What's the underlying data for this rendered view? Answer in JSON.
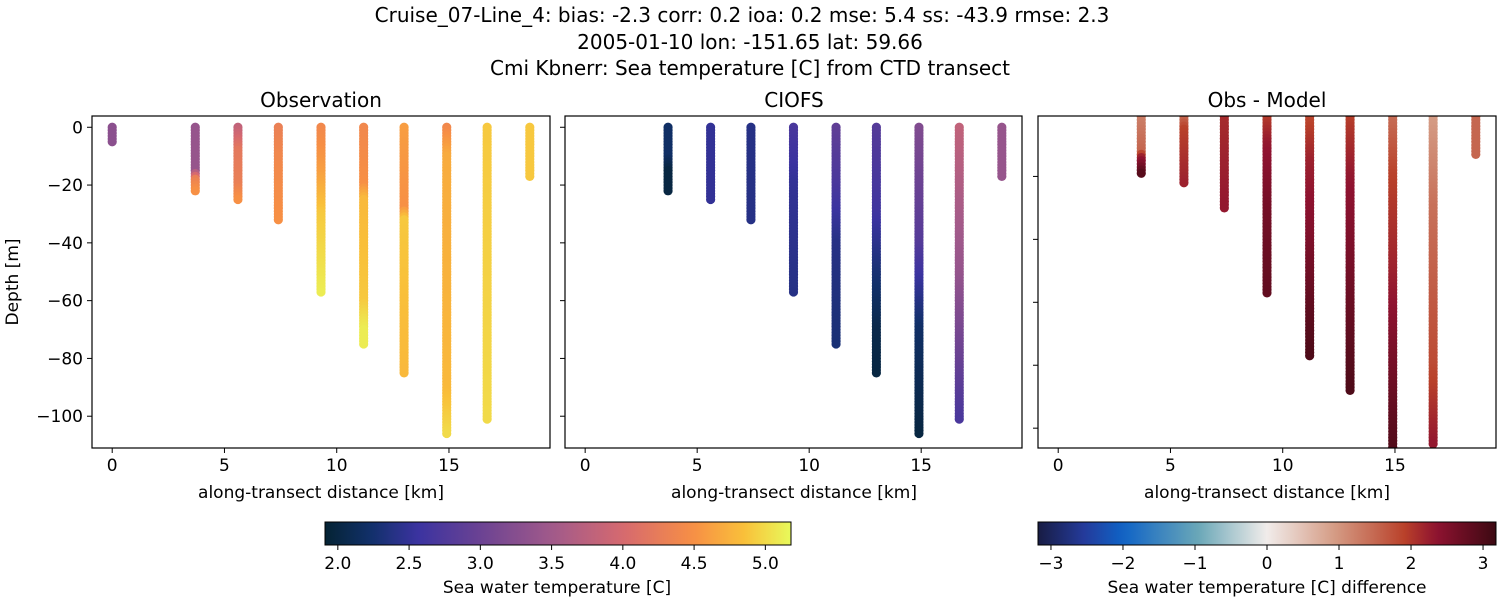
{
  "figure": {
    "title_lines": [
      "Cruise_07-Line_4: bias: -2.3  corr: 0.2  ioa: 0.2  mse: 5.4  ss: -43.9  rmse: 2.3",
      "2005-01-10 lon: -151.65 lat: 59.66",
      "Cmi Kbnerr: Sea temperature [C] from CTD transect"
    ]
  },
  "chart_data": [
    {
      "type": "scatter",
      "title": "Observation",
      "xlabel": "along-transect distance [km]",
      "ylabel": "Depth [m]",
      "xlim": [
        -0.9,
        19.5
      ],
      "ylim": [
        -111,
        3.9
      ],
      "xticks": [
        0,
        5,
        10,
        15
      ],
      "yticks": [
        0,
        -20,
        -40,
        -60,
        -80,
        -100
      ],
      "show_ytick_labels": true,
      "colormap": "thermal",
      "clim": [
        1.91,
        5.18
      ],
      "casts": [
        {
          "x": 0.0,
          "profile": [
            [
              0,
              3.3
            ],
            [
              5,
              3.3
            ]
          ]
        },
        {
          "x": 3.7,
          "profile": [
            [
              0,
              3.4
            ],
            [
              15,
              3.4
            ],
            [
              18,
              4.3
            ],
            [
              22,
              4.5
            ]
          ]
        },
        {
          "x": 5.6,
          "profile": [
            [
              0,
              3.8
            ],
            [
              8,
              4.2
            ],
            [
              20,
              4.3
            ],
            [
              25,
              4.5
            ]
          ]
        },
        {
          "x": 7.4,
          "profile": [
            [
              0,
              4.3
            ],
            [
              10,
              4.4
            ],
            [
              32,
              4.5
            ]
          ]
        },
        {
          "x": 9.3,
          "profile": [
            [
              0,
              4.4
            ],
            [
              15,
              4.6
            ],
            [
              30,
              4.9
            ],
            [
              57,
              5.1
            ]
          ]
        },
        {
          "x": 11.2,
          "profile": [
            [
              0,
              4.4
            ],
            [
              20,
              4.5
            ],
            [
              25,
              4.8
            ],
            [
              60,
              4.9
            ],
            [
              70,
              5.1
            ],
            [
              75,
              5.1
            ]
          ]
        },
        {
          "x": 13.0,
          "profile": [
            [
              0,
              4.6
            ],
            [
              28,
              4.5
            ],
            [
              32,
              4.9
            ],
            [
              85,
              4.8
            ]
          ]
        },
        {
          "x": 14.9,
          "profile": [
            [
              0,
              4.4
            ],
            [
              10,
              4.7
            ],
            [
              90,
              4.8
            ],
            [
              106,
              5.0
            ]
          ]
        },
        {
          "x": 16.7,
          "profile": [
            [
              0,
              4.9
            ],
            [
              101,
              5.0
            ]
          ]
        },
        {
          "x": 18.6,
          "profile": [
            [
              0,
              4.9
            ],
            [
              17,
              4.9
            ]
          ]
        }
      ]
    },
    {
      "type": "scatter",
      "title": "CIOFS",
      "xlabel": "along-transect distance [km]",
      "xlim": [
        -0.9,
        19.5
      ],
      "ylim": [
        -111,
        3.9
      ],
      "xticks": [
        0,
        5,
        10,
        15
      ],
      "yticks": [
        0,
        -20,
        -40,
        -60,
        -80,
        -100
      ],
      "show_ytick_labels": false,
      "colormap": "thermal",
      "clim": [
        1.91,
        5.18
      ],
      "casts": [
        {
          "x": 3.7,
          "profile": [
            [
              0,
              2.2
            ],
            [
              10,
              2.2
            ],
            [
              15,
              2.0
            ],
            [
              22,
              2.0
            ]
          ]
        },
        {
          "x": 5.6,
          "profile": [
            [
              0,
              2.5
            ],
            [
              25,
              2.5
            ]
          ]
        },
        {
          "x": 7.4,
          "profile": [
            [
              0,
              2.4
            ],
            [
              32,
              2.4
            ]
          ]
        },
        {
          "x": 9.3,
          "profile": [
            [
              0,
              2.7
            ],
            [
              20,
              2.5
            ],
            [
              57,
              2.4
            ]
          ]
        },
        {
          "x": 11.2,
          "profile": [
            [
              0,
              2.9
            ],
            [
              20,
              2.7
            ],
            [
              40,
              2.4
            ],
            [
              75,
              2.3
            ]
          ]
        },
        {
          "x": 13.0,
          "profile": [
            [
              0,
              2.8
            ],
            [
              30,
              2.6
            ],
            [
              50,
              2.3
            ],
            [
              70,
              2.05
            ],
            [
              85,
              2.0
            ]
          ]
        },
        {
          "x": 14.9,
          "profile": [
            [
              0,
              3.2
            ],
            [
              40,
              2.8
            ],
            [
              55,
              2.5
            ],
            [
              70,
              2.2
            ],
            [
              106,
              2.0
            ]
          ]
        },
        {
          "x": 16.7,
          "profile": [
            [
              0,
              3.8
            ],
            [
              50,
              3.4
            ],
            [
              101,
              2.7
            ]
          ]
        },
        {
          "x": 18.6,
          "profile": [
            [
              0,
              3.4
            ],
            [
              17,
              3.4
            ]
          ]
        }
      ]
    },
    {
      "type": "scatter",
      "title": "Obs - Model",
      "xlabel": "along-transect distance [km]",
      "xlim": [
        -0.9,
        19.5
      ],
      "ylim": [
        -106.3,
        -0.8
      ],
      "xticks": [
        0,
        5,
        10,
        15
      ],
      "yticks": [
        -20,
        -40,
        -60,
        -80,
        -100
      ],
      "show_ytick_labels": false,
      "colormap": "balance",
      "clim": [
        -3.18,
        3.18
      ],
      "casts": [
        {
          "x": 3.7,
          "profile": [
            [
              0,
              1.2
            ],
            [
              12,
              1.5
            ],
            [
              14,
              2.2
            ],
            [
              19,
              2.9
            ]
          ]
        },
        {
          "x": 5.6,
          "profile": [
            [
              0,
              1.3
            ],
            [
              5,
              1.9
            ],
            [
              22,
              2.2
            ]
          ]
        },
        {
          "x": 7.4,
          "profile": [
            [
              0,
              2.1
            ],
            [
              30,
              2.3
            ]
          ]
        },
        {
          "x": 9.3,
          "profile": [
            [
              0,
              1.9
            ],
            [
              10,
              2.3
            ],
            [
              30,
              2.6
            ],
            [
              57,
              2.8
            ]
          ]
        },
        {
          "x": 11.2,
          "profile": [
            [
              0,
              1.8
            ],
            [
              15,
              2.2
            ],
            [
              40,
              2.5
            ],
            [
              60,
              2.8
            ],
            [
              77,
              3.0
            ]
          ]
        },
        {
          "x": 13.0,
          "profile": [
            [
              0,
              1.9
            ],
            [
              20,
              2.3
            ],
            [
              40,
              2.5
            ],
            [
              88,
              3.0
            ]
          ]
        },
        {
          "x": 14.9,
          "profile": [
            [
              0,
              1.4
            ],
            [
              20,
              1.9
            ],
            [
              50,
              2.2
            ],
            [
              80,
              2.6
            ],
            [
              110,
              3.0
            ]
          ]
        },
        {
          "x": 16.7,
          "profile": [
            [
              0,
              0.9
            ],
            [
              30,
              1.4
            ],
            [
              80,
              1.8
            ],
            [
              100,
              2.2
            ],
            [
              105,
              2.3
            ]
          ]
        },
        {
          "x": 18.6,
          "profile": [
            [
              0,
              1.5
            ],
            [
              13,
              1.5
            ]
          ]
        }
      ]
    }
  ],
  "colorbars": [
    {
      "label": "Sea water temperature [C]",
      "colormap": "thermal",
      "range": [
        1.91,
        5.18
      ],
      "ticks": [
        "2.0",
        "2.5",
        "3.0",
        "3.5",
        "4.0",
        "4.5",
        "5.0"
      ]
    },
    {
      "label": "Sea water temperature [C] difference",
      "colormap": "balance",
      "range": [
        -3.18,
        3.18
      ],
      "ticks": [
        "−3",
        "−2",
        "−1",
        "0",
        "1",
        "2",
        "3"
      ]
    }
  ],
  "colormaps": {
    "thermal": [
      [
        0,
        "#042333"
      ],
      [
        0.1,
        "#12306b"
      ],
      [
        0.2,
        "#3b33a0"
      ],
      [
        0.33,
        "#6a4293"
      ],
      [
        0.49,
        "#a25a8a"
      ],
      [
        0.64,
        "#d6696f"
      ],
      [
        0.79,
        "#f78f45"
      ],
      [
        0.9,
        "#f9c03a"
      ],
      [
        1,
        "#e8fa5b"
      ]
    ],
    "balance": [
      [
        0,
        "#181c43"
      ],
      [
        0.1,
        "#243a9a"
      ],
      [
        0.185,
        "#0f63c6"
      ],
      [
        0.35,
        "#6aa7b8"
      ],
      [
        0.5,
        "#f1ecea"
      ],
      [
        0.65,
        "#d49a83"
      ],
      [
        0.8,
        "#b9412a"
      ],
      [
        0.87,
        "#8e1230"
      ],
      [
        1,
        "#3c0912"
      ]
    ]
  }
}
